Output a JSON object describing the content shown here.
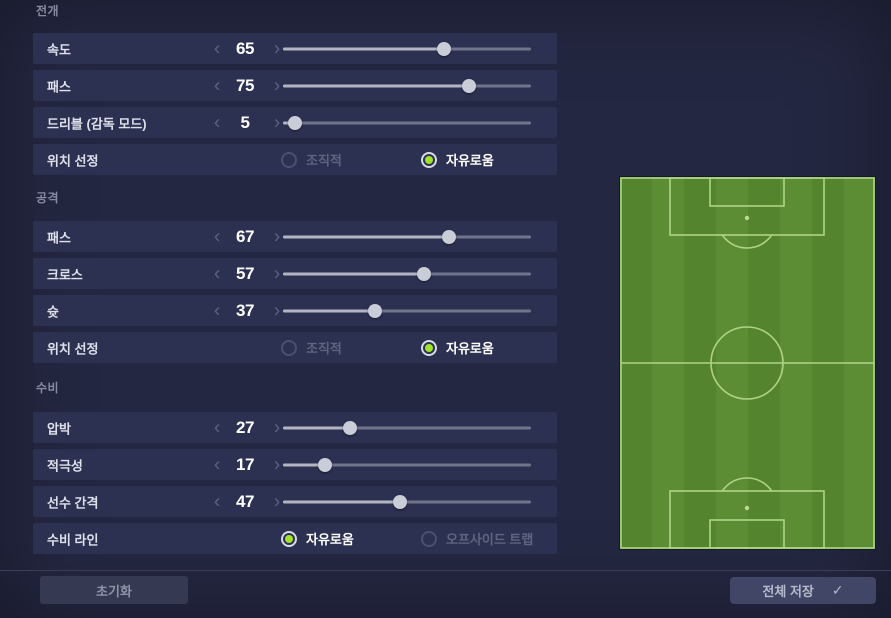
{
  "sections": [
    {
      "title": "전개",
      "rows": [
        {
          "type": "slider",
          "label": "속도",
          "value": 65
        },
        {
          "type": "slider",
          "label": "패스",
          "value": 75
        },
        {
          "type": "slider",
          "label": "드리블 (감독 모드)",
          "value": 5
        },
        {
          "type": "radio",
          "label": "위치 선정",
          "options": [
            {
              "label": "조직적",
              "selected": false
            },
            {
              "label": "자유로움",
              "selected": true
            }
          ]
        }
      ]
    },
    {
      "title": "공격",
      "rows": [
        {
          "type": "slider",
          "label": "패스",
          "value": 67
        },
        {
          "type": "slider",
          "label": "크로스",
          "value": 57
        },
        {
          "type": "slider",
          "label": "슛",
          "value": 37
        },
        {
          "type": "radio",
          "label": "위치 선정",
          "options": [
            {
              "label": "조직적",
              "selected": false
            },
            {
              "label": "자유로움",
              "selected": true
            }
          ]
        }
      ]
    },
    {
      "title": "수비",
      "rows": [
        {
          "type": "slider",
          "label": "압박",
          "value": 27
        },
        {
          "type": "slider",
          "label": "적극성",
          "value": 17
        },
        {
          "type": "slider",
          "label": "선수 간격",
          "value": 47
        },
        {
          "type": "radio",
          "label": "수비 라인",
          "options": [
            {
              "label": "자유로움",
              "selected": true
            },
            {
              "label": "오프사이드 트랩",
              "selected": false
            }
          ]
        }
      ]
    }
  ],
  "stepper": {
    "min": 0,
    "max": 100,
    "decrement_icon": "chevron-left-icon",
    "increment_icon": "chevron-right-icon",
    "dec_glyph": "‹",
    "inc_glyph": "›"
  },
  "footer": {
    "reset_label": "초기화",
    "save_label": "전체 저장",
    "save_icon": "check-icon",
    "check_glyph": "✓"
  },
  "colors": {
    "background": "#242741",
    "row_background": "#2d3151",
    "accent_radio_selected": "#9fe32b",
    "slider_fill": "#b2b6c3",
    "slider_track": "#70758a",
    "pitch_stripe_light": "#5c8c34",
    "pitch_stripe_dark": "#55842e",
    "pitch_line": "#b9dc8f"
  },
  "field": {
    "name": "soccer-pitch-preview"
  }
}
